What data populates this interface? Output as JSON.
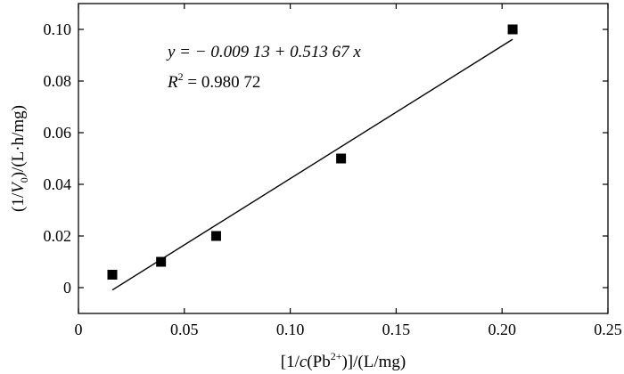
{
  "chart_data": {
    "type": "scatter",
    "xlabel": "[1/c(Pb2+)]/(L/mg)",
    "ylabel": "(1/V0)/(L·h/mg)",
    "xlim": [
      0,
      0.25
    ],
    "ylim": [
      -0.01,
      0.11
    ],
    "x_ticks": [
      "0",
      "0.05",
      "0.10",
      "0.15",
      "0.20",
      "0.25"
    ],
    "y_ticks": [
      "0",
      "0.02",
      "0.04",
      "0.06",
      "0.08",
      "0.10"
    ],
    "grid": false,
    "legend": "none",
    "series": [
      {
        "marker": "square",
        "color": "#000000",
        "points": [
          {
            "x": 0.016,
            "y": 0.005
          },
          {
            "x": 0.039,
            "y": 0.01
          },
          {
            "x": 0.065,
            "y": 0.02
          },
          {
            "x": 0.124,
            "y": 0.05
          },
          {
            "x": 0.205,
            "y": 0.1
          }
        ]
      }
    ],
    "fit_line": {
      "intercept": -0.00913,
      "slope": 0.51367,
      "x_from": 0.016,
      "x_to": 0.205
    },
    "annotations": {
      "equation": "y = − 0.009 13 + 0.513 67 x",
      "r_squared": "R2 = 0.980 72"
    }
  }
}
